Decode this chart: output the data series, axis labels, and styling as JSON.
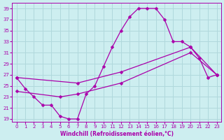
{
  "xlabel": "Windchill (Refroidissement éolien,°C)",
  "ylabel": "",
  "bg_color": "#cdeef0",
  "grid_color": "#b0d8dc",
  "line_color": "#aa00aa",
  "xlim": [
    -0.5,
    23.5
  ],
  "ylim": [
    18.5,
    40
  ],
  "xticks": [
    0,
    1,
    2,
    3,
    4,
    5,
    6,
    7,
    8,
    9,
    10,
    11,
    12,
    13,
    14,
    15,
    16,
    17,
    18,
    19,
    20,
    21,
    22,
    23
  ],
  "yticks": [
    19,
    21,
    23,
    25,
    27,
    29,
    31,
    33,
    35,
    37,
    39
  ],
  "line1_x": [
    0,
    1,
    2,
    3,
    4,
    5,
    6,
    7,
    8,
    9,
    10,
    11,
    12,
    13,
    14,
    15,
    16,
    17,
    18,
    19,
    20,
    21,
    22,
    23
  ],
  "line1_y": [
    26.5,
    24.5,
    23.0,
    21.5,
    21.5,
    19.5,
    19.0,
    19.0,
    23.5,
    25.0,
    28.5,
    32.0,
    35.0,
    37.5,
    39.0,
    39.0,
    39.0,
    37.0,
    33.0,
    33.0,
    32.0,
    30.0,
    26.5,
    27.0
  ],
  "line2_x": [
    0,
    7,
    12,
    20,
    23
  ],
  "line2_y": [
    26.5,
    25.5,
    27.5,
    32.0,
    27.0
  ],
  "line3_x": [
    0,
    5,
    7,
    12,
    20,
    23
  ],
  "line3_y": [
    24.0,
    23.0,
    23.5,
    25.5,
    31.0,
    27.0
  ]
}
